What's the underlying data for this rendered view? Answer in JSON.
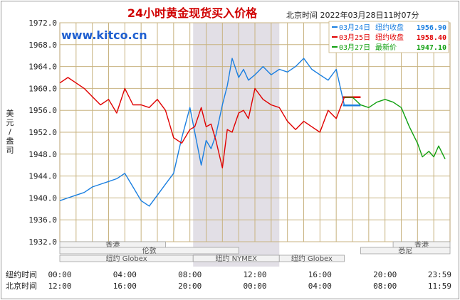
{
  "chart_data": {
    "type": "line",
    "title": "24小时黄金现货买入价格",
    "datetime_label": "北京时间  2022年03月28日11时07分",
    "watermark": "www.kitco.cn",
    "ylabel": "美元/盎司",
    "ylim": [
      1932.0,
      1972.0
    ],
    "y_ticks": [
      "1972.0",
      "1968.0",
      "1964.0",
      "1960.0",
      "1956.0",
      "1952.0",
      "1948.0",
      "1944.0",
      "1940.0",
      "1936.0",
      "1932.0"
    ],
    "x_range_ny_hours": [
      0,
      24
    ],
    "x_axis_rows": [
      {
        "label": "纽约时间",
        "ticks": [
          "00:00",
          "04:00",
          "08:00",
          "12:00",
          "16:00",
          "20:00",
          "23:59"
        ]
      },
      {
        "label": "北京时间",
        "ticks": [
          "12:00",
          "16:00",
          "20:00",
          "00:00",
          "04:00",
          "08:00",
          "11:59"
        ]
      }
    ],
    "shaded_session_ny_hours": [
      8.2,
      13.5
    ],
    "markets": [
      "香港",
      "伦敦",
      "纽约 NYMEX",
      "纽约 Globex",
      "纽约 Globex",
      "香港",
      "悉尼"
    ],
    "legend": [
      {
        "date": "03月24日",
        "label": "纽约收盘",
        "value": "1956.90",
        "color": "#1a7fe0"
      },
      {
        "date": "03月25日",
        "label": "纽约收盘",
        "value": "1958.40",
        "color": "#e00000"
      },
      {
        "date": "03月27日",
        "label": "最新价",
        "value": "1947.10",
        "color": "#10a010"
      }
    ],
    "series": [
      {
        "name": "03月24日",
        "color": "#1a7fe0",
        "x": [
          0,
          0.5,
          1,
          1.5,
          2,
          2.5,
          3,
          3.5,
          4,
          4.5,
          5,
          5.5,
          6,
          6.5,
          7,
          7.5,
          8,
          8.3,
          8.7,
          9,
          9.3,
          9.6,
          10,
          10.3,
          10.6,
          11,
          11.3,
          11.6,
          12,
          12.5,
          13,
          13.5,
          14,
          14.5,
          15,
          15.5,
          16,
          16.5,
          17,
          17.5
        ],
        "y": [
          1939.5,
          1940.0,
          1940.5,
          1941.0,
          1942.0,
          1942.5,
          1943.0,
          1943.5,
          1944.5,
          1942.0,
          1939.5,
          1938.5,
          1940.5,
          1942.5,
          1944.5,
          1951.0,
          1956.5,
          1952.0,
          1946.0,
          1950.5,
          1949.0,
          1951.5,
          1957.0,
          1960.5,
          1965.5,
          1962.0,
          1963.5,
          1961.5,
          1962.5,
          1964.0,
          1962.5,
          1963.5,
          1963.0,
          1964.0,
          1965.5,
          1963.5,
          1962.5,
          1961.5,
          1963.5,
          1956.9
        ]
      },
      {
        "name": "03月25日",
        "color": "#e00000",
        "x": [
          0,
          0.5,
          1,
          1.5,
          2,
          2.5,
          3,
          3.5,
          4,
          4.5,
          5,
          5.5,
          6,
          6.5,
          7,
          7.5,
          8,
          8.3,
          8.7,
          9,
          9.3,
          9.6,
          10,
          10.3,
          10.6,
          11,
          11.3,
          11.6,
          12,
          12.5,
          13,
          13.5,
          14,
          14.5,
          15,
          15.5,
          16,
          16.5,
          17,
          17.5
        ],
        "y": [
          1961.0,
          1962.0,
          1961.0,
          1960.0,
          1958.5,
          1957.0,
          1958.0,
          1955.5,
          1960.0,
          1957.0,
          1957.0,
          1956.5,
          1958.0,
          1956.0,
          1951.0,
          1950.0,
          1952.5,
          1953.0,
          1956.5,
          1953.0,
          1953.5,
          1950.5,
          1945.5,
          1952.5,
          1952.0,
          1955.5,
          1956.0,
          1954.5,
          1960.0,
          1958.0,
          1957.0,
          1956.5,
          1954.0,
          1952.5,
          1954.0,
          1953.0,
          1952.0,
          1956.0,
          1954.5,
          1958.4
        ]
      },
      {
        "name": "03月27日",
        "color": "#10a010",
        "x": [
          17.5,
          18,
          18.5,
          19,
          19.5,
          20,
          20.5,
          21,
          21.5,
          22,
          22.3,
          22.7,
          23,
          23.3,
          23.7
        ],
        "y": [
          1958.4,
          1958.4,
          1957.0,
          1956.5,
          1957.5,
          1958.0,
          1957.5,
          1956.5,
          1953.0,
          1950.0,
          1947.5,
          1948.5,
          1947.5,
          1949.5,
          1947.1
        ]
      }
    ]
  }
}
